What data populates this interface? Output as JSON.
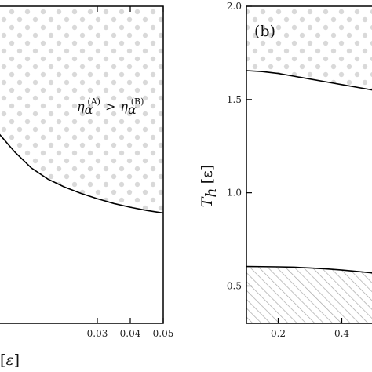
{
  "chart_data": [
    {
      "panel": "a",
      "type": "line",
      "xlabel_parts": [
        "[",
        "ε",
        "]"
      ],
      "xlim": [
        0.0,
        0.05
      ],
      "xticks": [
        0.03,
        0.04,
        0.05
      ],
      "xtick_labels": [
        "0.03",
        "0.04",
        "0.05"
      ],
      "curve": {
        "x": [
          0.0,
          0.005,
          0.01,
          0.015,
          0.02,
          0.025,
          0.03,
          0.035,
          0.04,
          0.045,
          0.05
        ],
        "y": [
          0.6,
          0.54,
          0.49,
          0.455,
          0.43,
          0.41,
          0.393,
          0.378,
          0.366,
          0.356,
          0.348
        ]
      },
      "region_above": "dotted",
      "annotation_parts": {
        "eta": "η",
        "sub": "α",
        "sup_a": "(A)",
        "op": ">",
        "sup_b": "(B)"
      }
    },
    {
      "panel": "b",
      "type": "line",
      "panel_label": "(b)",
      "ylabel_main": "T",
      "ylabel_sub": "h",
      "ylabel_unit": "[ε]",
      "ylim": [
        0.3,
        2.0
      ],
      "yticks": [
        0.5,
        1.0,
        1.5,
        2.0
      ],
      "ytick_labels": [
        "0.5",
        "1.0",
        "1.5",
        "2.0"
      ],
      "xlim": [
        0.1,
        0.5
      ],
      "xticks": [
        0.2,
        0.4
      ],
      "xtick_labels": [
        "0.2",
        "0.4"
      ],
      "series": [
        {
          "x": [
            0.1,
            0.15,
            0.2,
            0.25,
            0.3,
            0.35,
            0.4,
            0.45,
            0.5
          ],
          "y": [
            1.655,
            1.65,
            1.64,
            1.625,
            1.61,
            1.595,
            1.58,
            1.565,
            1.55
          ]
        },
        {
          "x": [
            0.1,
            0.15,
            0.2,
            0.25,
            0.3,
            0.35,
            0.4,
            0.45,
            0.5
          ],
          "y": [
            0.605,
            0.604,
            0.603,
            0.601,
            0.597,
            0.592,
            0.586,
            0.578,
            0.57
          ]
        }
      ],
      "region_above_upper": "dotted",
      "region_below_lower": "hatched"
    }
  ]
}
